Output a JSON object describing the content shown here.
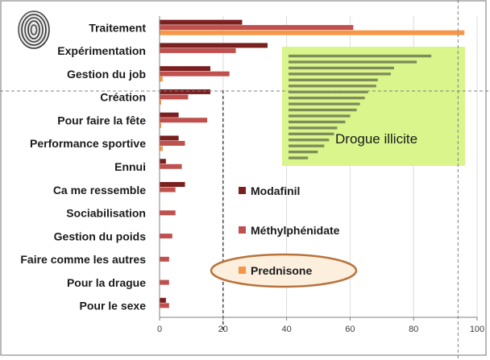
{
  "chart_data": {
    "type": "bar",
    "orientation": "horizontal",
    "categories": [
      "Traitement",
      "Expérimentation",
      "Gestion du job",
      "Création",
      "Pour faire la fête",
      "Performance sportive",
      "Ennui",
      "Ca me ressemble",
      "Sociabilisation",
      "Gestion du poids",
      "Faire comme les autres",
      "Pour la drague",
      "Pour le sexe"
    ],
    "series": [
      {
        "name": "Modafinil",
        "color": "#7b1f1f",
        "values": [
          26,
          34,
          16,
          16,
          6,
          6,
          2,
          8,
          0,
          0,
          0,
          0,
          2
        ]
      },
      {
        "name": "Méthylphénidate",
        "color": "#c0504d",
        "values": [
          61,
          24,
          22,
          9,
          15,
          8,
          7,
          5,
          5,
          4,
          3,
          3,
          3
        ]
      },
      {
        "name": "Prednisone",
        "color": "#f79646",
        "values": [
          96,
          0,
          1,
          0.5,
          0.5,
          1,
          0,
          0,
          0,
          0,
          0,
          0,
          0
        ]
      }
    ],
    "xlim": [
      0,
      100
    ],
    "xticks": [
      0,
      20,
      40,
      60,
      80,
      100
    ],
    "grid": true,
    "reference_lines": [
      20,
      94
    ],
    "legend_position": "center-right"
  },
  "inset": {
    "label": "Drogue illicite",
    "background": "#d9f58c",
    "bar_color": "#7f8c5a",
    "values": [
      88,
      79,
      65,
      63,
      55,
      54,
      49,
      47,
      44,
      42,
      38,
      35,
      30,
      28,
      25,
      22,
      18,
      12
    ]
  },
  "legend_highlight_color": "#b8733c",
  "icons": [
    "fingerprint-icon"
  ]
}
